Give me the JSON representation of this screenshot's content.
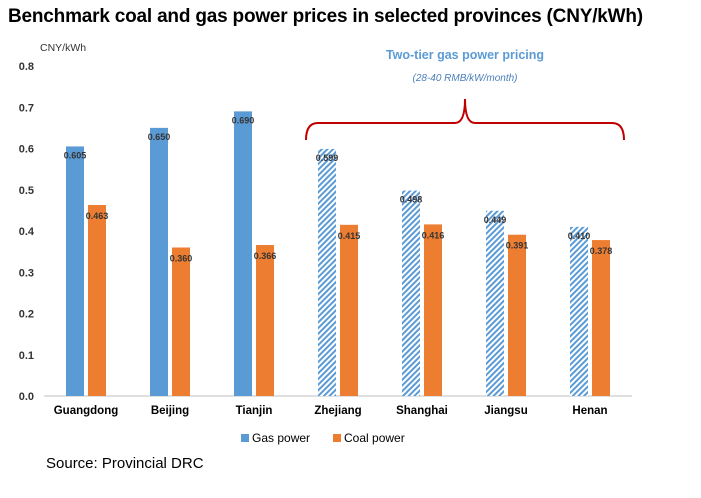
{
  "title": "Benchmark coal and gas power prices in selected provinces (CNY/kWh)",
  "source": "Source: Provincial DRC",
  "colors": {
    "gas": "#5b9bd5",
    "coal": "#ed7d31",
    "bracket": "#c00000",
    "annotation": "#5b9bd5",
    "annotation_sub": "#4a7eb8"
  },
  "chart_data": {
    "type": "bar",
    "title": "",
    "ylabel": "CNY/kWh",
    "xlabel": "",
    "ylim": [
      0,
      0.8
    ],
    "yticks": [
      "0.0",
      "0.1",
      "0.2",
      "0.3",
      "0.4",
      "0.5",
      "0.6",
      "0.7",
      "0.8"
    ],
    "grid": false,
    "legend_position": "bottom",
    "categories": [
      "Guangdong",
      "Beijing",
      "Tianjin",
      "Zhejiang",
      "Shanghai",
      "Jiangsu",
      "Henan"
    ],
    "series": [
      {
        "name": "Gas power",
        "values": [
          0.605,
          0.65,
          0.69,
          0.599,
          0.498,
          0.449,
          0.41
        ],
        "labels": [
          "0.605",
          "0.650",
          "0.690",
          "0.599",
          "0.498",
          "0.449",
          "0.410"
        ],
        "hatched": [
          false,
          false,
          false,
          true,
          true,
          true,
          true
        ]
      },
      {
        "name": "Coal power",
        "values": [
          0.463,
          0.36,
          0.366,
          0.415,
          0.416,
          0.391,
          0.378
        ],
        "labels": [
          "0.463",
          "0.360",
          "0.366",
          "0.415",
          "0.416",
          "0.391",
          "0.378"
        ]
      }
    ],
    "annotation": {
      "title": "Two-tier gas power pricing",
      "subtitle": "(28-40 RMB/kW/month)",
      "from_category": "Zhejiang",
      "to_category": "Henan"
    }
  }
}
